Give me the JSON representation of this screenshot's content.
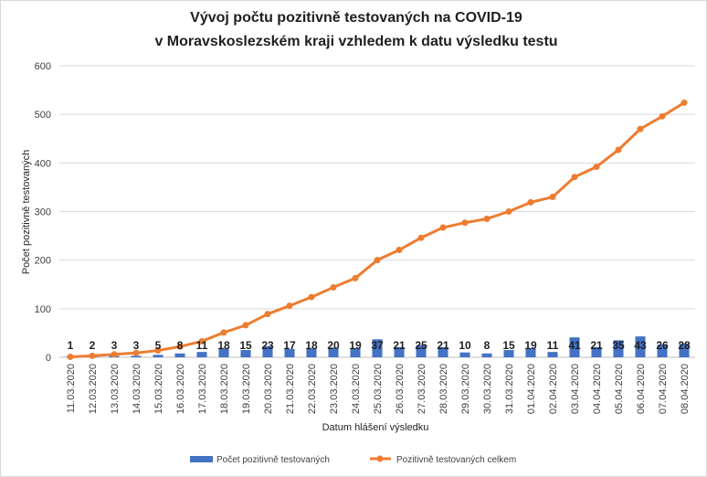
{
  "chart_data": {
    "type": "bar+line",
    "title_lines": [
      "Vývoj počtu pozitivně testovaných na COVID-19",
      "v Moravskoslezském kraji vzhledem k datu výsledku testu"
    ],
    "xlabel": "Datum hlášení výsledku",
    "ylabel": "Počet pozitivně testovaných",
    "ylim": [
      0,
      600
    ],
    "yticks": [
      0,
      100,
      200,
      300,
      400,
      500,
      600
    ],
    "grid": "horizontal",
    "legend_position": "bottom",
    "categories": [
      "11.03.2020",
      "12.03.2020",
      "13.03.2020",
      "14.03.2020",
      "15.03.2020",
      "16.03.2020",
      "17.03.2020",
      "18.03.2020",
      "19.03.2020",
      "20.03.2020",
      "21.03.2020",
      "22.03.2020",
      "23.03.2020",
      "24.03.2020",
      "25.03.2020",
      "26.03.2020",
      "27.03.2020",
      "28.03.2020",
      "29.03.2020",
      "30.03.2020",
      "31.03.2020",
      "01.04.2020",
      "02.04.2020",
      "03.04.2020",
      "04.04.2020",
      "05.04.2020",
      "06.04.2020",
      "07.04.2020",
      "08.04.2020"
    ],
    "series": [
      {
        "name": "Počet pozitivně testovaných",
        "kind": "bar",
        "color": "#4472c4",
        "values": [
          1,
          2,
          3,
          3,
          5,
          8,
          11,
          18,
          15,
          23,
          17,
          18,
          20,
          19,
          37,
          21,
          25,
          21,
          10,
          8,
          15,
          19,
          11,
          41,
          21,
          35,
          43,
          26,
          28
        ]
      },
      {
        "name": "Pozitivně testovaných celkem",
        "kind": "line",
        "color": "#ed7d31",
        "values": [
          1,
          3,
          6,
          9,
          14,
          22,
          33,
          51,
          66,
          89,
          106,
          124,
          144,
          163,
          200,
          221,
          246,
          267,
          277,
          285,
          300,
          319,
          330,
          371,
          392,
          427,
          470,
          496,
          524
        ]
      }
    ]
  }
}
